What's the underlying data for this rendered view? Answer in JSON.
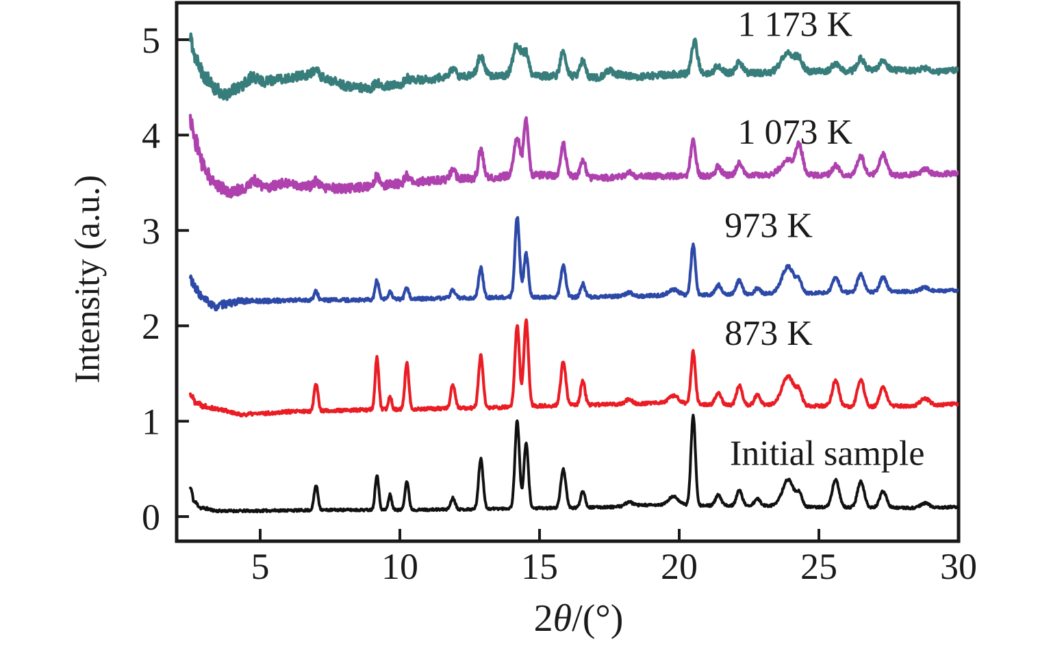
{
  "chart_data": {
    "type": "line",
    "title": "",
    "xlabel": "2θ/(°)",
    "xlabel_parts": {
      "prefix": "2",
      "theta": "θ",
      "suffix": "/(°)"
    },
    "ylabel": "Intensity (a.u.)",
    "x_ticks": [
      5,
      10,
      15,
      20,
      25,
      30
    ],
    "y_ticks": [
      0,
      1,
      2,
      3,
      4,
      5
    ],
    "x_range": [
      2.0,
      30.05
    ],
    "y_range": [
      -0.26,
      5.39
    ],
    "data_x_start": 2.5,
    "data_x_end": 30,
    "grid": false,
    "legend_position": "labels-inline-right",
    "axis_color": "#1a1a1a",
    "background": "#ffffff",
    "series": [
      {
        "name": "1173-k",
        "label": "1 173 K",
        "color": "#377d7b",
        "stroke_width": 4.4,
        "offset": 4.65,
        "label_anchor": {
          "x": 24.15,
          "y": 5.17
        },
        "seed": 55,
        "noise": [
          [
            2.5,
            0.085
          ],
          [
            4,
            0.065
          ],
          [
            6,
            0.05
          ],
          [
            9,
            0.045
          ],
          [
            13,
            0.04
          ],
          [
            17,
            0.036
          ],
          [
            22,
            0.033
          ],
          [
            30,
            0.03
          ]
        ],
        "baseline": [
          [
            2.5,
            5.0
          ],
          [
            2.7,
            4.82
          ],
          [
            3.0,
            4.62
          ],
          [
            3.4,
            4.47
          ],
          [
            3.8,
            4.43
          ],
          [
            4.2,
            4.5
          ],
          [
            4.7,
            4.6
          ],
          [
            5.1,
            4.56
          ],
          [
            5.6,
            4.58
          ],
          [
            6.2,
            4.61
          ],
          [
            6.9,
            4.64
          ],
          [
            7.5,
            4.57
          ],
          [
            8.2,
            4.51
          ],
          [
            9.0,
            4.49
          ],
          [
            9.8,
            4.52
          ],
          [
            10.8,
            4.58
          ],
          [
            11.8,
            4.61
          ],
          [
            12.5,
            4.62
          ],
          [
            13.5,
            4.62
          ],
          [
            14.8,
            4.62
          ],
          [
            15.5,
            4.62
          ],
          [
            16.3,
            4.62
          ],
          [
            17,
            4.6
          ],
          [
            17.8,
            4.63
          ],
          [
            18.6,
            4.61
          ],
          [
            19.4,
            4.63
          ],
          [
            20,
            4.64
          ],
          [
            21,
            4.65
          ],
          [
            22,
            4.65
          ],
          [
            23,
            4.65
          ],
          [
            24,
            4.66
          ],
          [
            25,
            4.67
          ],
          [
            26,
            4.67
          ],
          [
            27,
            4.69
          ],
          [
            28,
            4.68
          ],
          [
            29,
            4.66
          ],
          [
            30,
            4.68
          ]
        ],
        "peaks": [
          [
            7.0,
            0.04,
            0.1
          ],
          [
            9.18,
            0.05,
            0.1
          ],
          [
            10.25,
            0.05,
            0.1
          ],
          [
            11.9,
            0.08,
            0.1
          ],
          [
            12.9,
            0.21,
            0.12
          ],
          [
            14.2,
            0.33,
            0.15
          ],
          [
            14.52,
            0.22,
            0.1
          ],
          [
            15.85,
            0.26,
            0.1
          ],
          [
            16.55,
            0.17,
            0.1
          ],
          [
            17.5,
            0.05,
            0.15
          ],
          [
            20.55,
            0.34,
            0.1
          ],
          [
            21.4,
            0.08,
            0.12
          ],
          [
            22.15,
            0.11,
            0.12
          ],
          [
            23.9,
            0.2,
            0.25
          ],
          [
            24.3,
            0.1,
            0.12
          ],
          [
            25.6,
            0.08,
            0.12
          ],
          [
            26.5,
            0.12,
            0.12
          ],
          [
            27.3,
            0.1,
            0.12
          ],
          [
            28.8,
            0.04,
            0.15
          ]
        ]
      },
      {
        "name": "1073-k",
        "label": "1 073 K",
        "color": "#ae41ae",
        "stroke_width": 4.4,
        "offset": 3.55,
        "label_anchor": {
          "x": 24.15,
          "y": 4.04
        },
        "seed": 44,
        "noise": [
          [
            2.5,
            0.085
          ],
          [
            4,
            0.06
          ],
          [
            6,
            0.05
          ],
          [
            9,
            0.045
          ],
          [
            13,
            0.038
          ],
          [
            17,
            0.032
          ],
          [
            22,
            0.028
          ],
          [
            30,
            0.026
          ]
        ],
        "baseline": [
          [
            2.5,
            4.15
          ],
          [
            2.7,
            3.92
          ],
          [
            3.0,
            3.65
          ],
          [
            3.4,
            3.48
          ],
          [
            3.9,
            3.4
          ],
          [
            4.4,
            3.44
          ],
          [
            4.8,
            3.52
          ],
          [
            5.2,
            3.45
          ],
          [
            5.8,
            3.49
          ],
          [
            6.5,
            3.47
          ],
          [
            7.2,
            3.45
          ],
          [
            8,
            3.44
          ],
          [
            9,
            3.46
          ],
          [
            10,
            3.49
          ],
          [
            11,
            3.52
          ],
          [
            12,
            3.54
          ],
          [
            13,
            3.55
          ],
          [
            14,
            3.57
          ],
          [
            15,
            3.58
          ],
          [
            16,
            3.57
          ],
          [
            17,
            3.55
          ],
          [
            18,
            3.56
          ],
          [
            19,
            3.57
          ],
          [
            20,
            3.57
          ],
          [
            21,
            3.57
          ],
          [
            22,
            3.58
          ],
          [
            23,
            3.58
          ],
          [
            24,
            3.58
          ],
          [
            25,
            3.58
          ],
          [
            26,
            3.58
          ],
          [
            27,
            3.59
          ],
          [
            28,
            3.58
          ],
          [
            29,
            3.59
          ],
          [
            30,
            3.6
          ]
        ],
        "peaks": [
          [
            7.0,
            0.06,
            0.08
          ],
          [
            9.18,
            0.11,
            0.08
          ],
          [
            10.25,
            0.08,
            0.08
          ],
          [
            11.9,
            0.1,
            0.09
          ],
          [
            12.9,
            0.29,
            0.09
          ],
          [
            14.2,
            0.4,
            0.11
          ],
          [
            14.52,
            0.6,
            0.08
          ],
          [
            15.85,
            0.35,
            0.09
          ],
          [
            16.55,
            0.19,
            0.09
          ],
          [
            18.2,
            0.04,
            0.12
          ],
          [
            20.5,
            0.37,
            0.09
          ],
          [
            21.4,
            0.1,
            0.1
          ],
          [
            22.15,
            0.13,
            0.1
          ],
          [
            23.9,
            0.16,
            0.25
          ],
          [
            24.3,
            0.28,
            0.12
          ],
          [
            25.6,
            0.1,
            0.12
          ],
          [
            26.5,
            0.19,
            0.12
          ],
          [
            27.3,
            0.21,
            0.12
          ],
          [
            28.8,
            0.05,
            0.15
          ]
        ]
      },
      {
        "name": "973-k",
        "label": "973 K",
        "color": "#2d49a7",
        "stroke_width": 4.2,
        "offset": 2.3,
        "label_anchor": {
          "x": 23.2,
          "y": 3.06
        },
        "seed": 33,
        "noise": [
          [
            2.5,
            0.055
          ],
          [
            3.5,
            0.04
          ],
          [
            5,
            0.022
          ],
          [
            8,
            0.018
          ],
          [
            30,
            0.016
          ]
        ],
        "baseline": [
          [
            2.5,
            2.5
          ],
          [
            2.7,
            2.38
          ],
          [
            3.0,
            2.27
          ],
          [
            3.4,
            2.2
          ],
          [
            3.8,
            2.23
          ],
          [
            4.3,
            2.26
          ],
          [
            5,
            2.26
          ],
          [
            6.5,
            2.27
          ],
          [
            8,
            2.27
          ],
          [
            10,
            2.28
          ],
          [
            12,
            2.29
          ],
          [
            14,
            2.3
          ],
          [
            16,
            2.3
          ],
          [
            18,
            2.31
          ],
          [
            20,
            2.32
          ],
          [
            22,
            2.33
          ],
          [
            24,
            2.34
          ],
          [
            26,
            2.35
          ],
          [
            28,
            2.36
          ],
          [
            30,
            2.37
          ]
        ],
        "peaks": [
          [
            7.0,
            0.09,
            0.07
          ],
          [
            9.18,
            0.2,
            0.065
          ],
          [
            9.65,
            0.08,
            0.06
          ],
          [
            10.25,
            0.12,
            0.07
          ],
          [
            11.9,
            0.09,
            0.08
          ],
          [
            12.9,
            0.31,
            0.08
          ],
          [
            14.2,
            0.84,
            0.08
          ],
          [
            14.52,
            0.46,
            0.08
          ],
          [
            15.85,
            0.33,
            0.09
          ],
          [
            16.55,
            0.14,
            0.08
          ],
          [
            18.2,
            0.04,
            0.12
          ],
          [
            19.8,
            0.06,
            0.18
          ],
          [
            20.5,
            0.53,
            0.08
          ],
          [
            21.4,
            0.1,
            0.1
          ],
          [
            22.15,
            0.15,
            0.1
          ],
          [
            22.8,
            0.06,
            0.1
          ],
          [
            23.9,
            0.28,
            0.22
          ],
          [
            24.3,
            0.1,
            0.1
          ],
          [
            25.6,
            0.16,
            0.12
          ],
          [
            26.5,
            0.19,
            0.12
          ],
          [
            27.3,
            0.15,
            0.12
          ],
          [
            28.8,
            0.04,
            0.15
          ]
        ]
      },
      {
        "name": "873-k",
        "label": "873 K",
        "color": "#ea1c24",
        "stroke_width": 4.2,
        "offset": 1.15,
        "label_anchor": {
          "x": 23.2,
          "y": 1.93
        },
        "seed": 22,
        "noise": [
          [
            2.5,
            0.03
          ],
          [
            4,
            0.018
          ],
          [
            30,
            0.016
          ]
        ],
        "baseline": [
          [
            2.5,
            1.28
          ],
          [
            2.7,
            1.2
          ],
          [
            3.0,
            1.16
          ],
          [
            3.6,
            1.12
          ],
          [
            4.3,
            1.07
          ],
          [
            5.0,
            1.08
          ],
          [
            6,
            1.1
          ],
          [
            7.5,
            1.11
          ],
          [
            9,
            1.12
          ],
          [
            11,
            1.13
          ],
          [
            13,
            1.14
          ],
          [
            15,
            1.16
          ],
          [
            16.5,
            1.17
          ],
          [
            18,
            1.18
          ],
          [
            19.3,
            1.19
          ],
          [
            20.5,
            1.18
          ],
          [
            22,
            1.17
          ],
          [
            23.5,
            1.17
          ],
          [
            25,
            1.16
          ],
          [
            26.5,
            1.15
          ],
          [
            28,
            1.16
          ],
          [
            29,
            1.17
          ],
          [
            30,
            1.18
          ]
        ],
        "peaks": [
          [
            7.0,
            0.29,
            0.07
          ],
          [
            9.18,
            0.55,
            0.065
          ],
          [
            9.65,
            0.14,
            0.06
          ],
          [
            10.25,
            0.48,
            0.07
          ],
          [
            11.9,
            0.25,
            0.08
          ],
          [
            12.9,
            0.55,
            0.08
          ],
          [
            14.2,
            0.85,
            0.08
          ],
          [
            14.52,
            0.91,
            0.08
          ],
          [
            15.85,
            0.46,
            0.09
          ],
          [
            16.55,
            0.25,
            0.08
          ],
          [
            18.2,
            0.05,
            0.12
          ],
          [
            19.8,
            0.08,
            0.18
          ],
          [
            20.5,
            0.55,
            0.08
          ],
          [
            21.4,
            0.13,
            0.1
          ],
          [
            22.15,
            0.21,
            0.1
          ],
          [
            22.8,
            0.11,
            0.1
          ],
          [
            23.9,
            0.3,
            0.22
          ],
          [
            24.3,
            0.13,
            0.1
          ],
          [
            25.6,
            0.27,
            0.12
          ],
          [
            26.5,
            0.29,
            0.12
          ],
          [
            27.3,
            0.21,
            0.12
          ],
          [
            28.8,
            0.07,
            0.15
          ]
        ]
      },
      {
        "name": "initial-sample",
        "label": "Initial sample",
        "color": "#111111",
        "stroke_width": 4.0,
        "offset": 0.08,
        "label_anchor": {
          "x": 25.3,
          "y": 0.67
        },
        "seed": 11,
        "noise": [
          [
            2.5,
            0.02
          ],
          [
            3.5,
            0.012
          ],
          [
            30,
            0.012
          ]
        ],
        "baseline": [
          [
            2.5,
            0.3
          ],
          [
            2.65,
            0.15
          ],
          [
            2.9,
            0.09
          ],
          [
            3.5,
            0.06
          ],
          [
            4.5,
            0.06
          ],
          [
            6,
            0.065
          ],
          [
            8,
            0.07
          ],
          [
            10,
            0.07
          ],
          [
            12,
            0.075
          ],
          [
            14,
            0.085
          ],
          [
            16,
            0.09
          ],
          [
            17.5,
            0.1
          ],
          [
            18.6,
            0.12
          ],
          [
            19.6,
            0.12
          ],
          [
            21,
            0.115
          ],
          [
            23,
            0.115
          ],
          [
            25,
            0.1
          ],
          [
            27,
            0.095
          ],
          [
            28.5,
            0.09
          ],
          [
            30,
            0.1
          ]
        ],
        "peaks": [
          [
            7.0,
            0.26,
            0.07
          ],
          [
            9.18,
            0.37,
            0.065
          ],
          [
            9.65,
            0.16,
            0.06
          ],
          [
            10.25,
            0.3,
            0.07
          ],
          [
            11.9,
            0.12,
            0.08
          ],
          [
            12.9,
            0.53,
            0.08
          ],
          [
            14.2,
            0.92,
            0.08
          ],
          [
            14.52,
            0.68,
            0.08
          ],
          [
            15.85,
            0.41,
            0.09
          ],
          [
            16.55,
            0.18,
            0.08
          ],
          [
            18.2,
            0.04,
            0.12
          ],
          [
            19.8,
            0.09,
            0.18
          ],
          [
            20.5,
            0.94,
            0.08
          ],
          [
            21.4,
            0.11,
            0.1
          ],
          [
            22.15,
            0.16,
            0.1
          ],
          [
            22.8,
            0.07,
            0.1
          ],
          [
            23.9,
            0.28,
            0.2
          ],
          [
            24.3,
            0.12,
            0.1
          ],
          [
            25.6,
            0.29,
            0.12
          ],
          [
            26.5,
            0.27,
            0.12
          ],
          [
            27.3,
            0.17,
            0.12
          ],
          [
            28.8,
            0.05,
            0.15
          ]
        ]
      }
    ]
  }
}
